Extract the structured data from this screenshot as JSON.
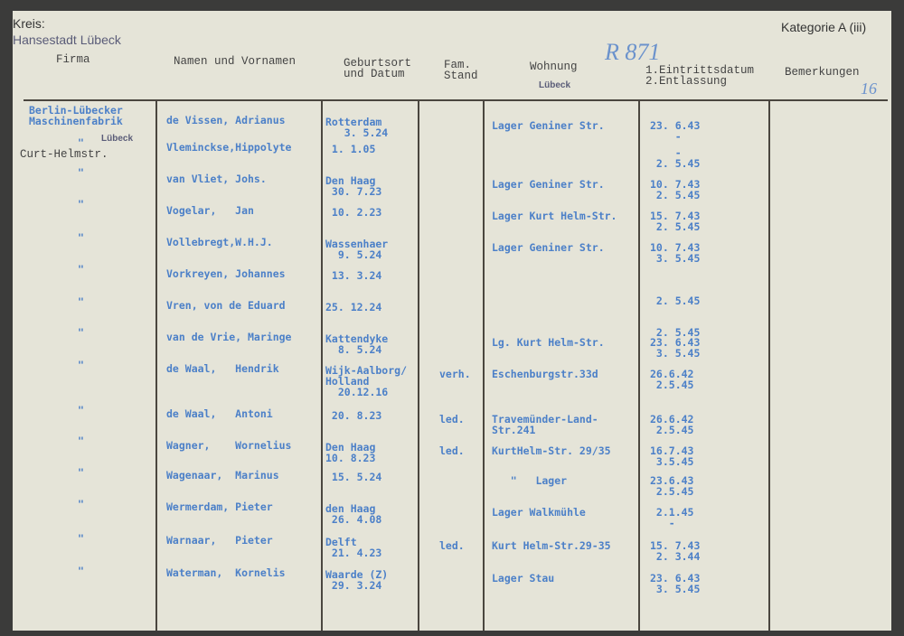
{
  "card": {
    "kreis_label": "Kreis:",
    "kreis_value": "Hansestadt Lübeck",
    "category": "Kategorie A (iii)",
    "archive_number": "R 871",
    "page_number": "16",
    "stamp_luebeck": "Lübeck",
    "curt_helmstr": "Curt-Helmstr."
  },
  "headers": {
    "firma": "Firma",
    "name": "Namen und Vornamen",
    "geburt": "Geburtsort\nund Datum",
    "fam": "Fam.\nStand",
    "wohnung": "Wohnung",
    "daten": "1.Eintrittsdatum\n2.Entlassung",
    "bemerkungen": "Bemerkungen"
  },
  "firma": "Berlin-Lübecker\nMaschinenfabrik",
  "ditto": "\"",
  "rows": [
    {
      "name": "de Vissen, Adrianus",
      "geburt": "Rotterdam\n   3. 5.24",
      "fam": "",
      "wohnung": "Lager Geniner Str.",
      "daten": "23. 6.43\n    -"
    },
    {
      "name": "Vleminckse,Hippolyte",
      "geburt": " 1. 1.05",
      "fam": "",
      "wohnung": "",
      "daten": "    -\n 2. 5.45"
    },
    {
      "name": "van Vliet, Johs.",
      "geburt": "Den Haag\n 30. 7.23",
      "fam": "",
      "wohnung": "Lager Geniner Str.",
      "daten": "10. 7.43\n 2. 5.45"
    },
    {
      "name": "Vogelar,   Jan",
      "geburt": " 10. 2.23",
      "fam": "",
      "wohnung": "Lager Kurt Helm-Str.",
      "daten": "15. 7.43\n 2. 5.45"
    },
    {
      "name": "Vollebregt,W.H.J.",
      "geburt": "Wassenhaer\n  9. 5.24",
      "fam": "",
      "wohnung": "Lager Geniner Str.",
      "daten": "10. 7.43\n 3. 5.45"
    },
    {
      "name": "Vorkreyen, Johannes",
      "geburt": " 13. 3.24",
      "fam": "",
      "wohnung": "",
      "daten": "\n\n 2. 5.45"
    },
    {
      "name": "Vren, von de Eduard",
      "geburt": "25. 12.24",
      "fam": "",
      "wohnung": "",
      "daten": "\n\n 2. 5.45"
    },
    {
      "name": "van de Vrie, Maringe",
      "geburt": "Kattendyke\n  8. 5.24",
      "fam": "",
      "wohnung": "Lg. Kurt Helm-Str.",
      "daten": "23. 6.43\n 3. 5.45"
    },
    {
      "name": "de Waal,   Hendrik",
      "geburt": "Wijk-Aalborg/\nHolland\n  20.12.16",
      "fam": "verh.",
      "wohnung": "Eschenburgstr.33d",
      "daten": "26.6.42\n 2.5.45"
    },
    {
      "name": "de Waal,   Antoni",
      "geburt": " 20. 8.23",
      "fam": "led.",
      "wohnung": "Travemünder-Land-\nStr.241",
      "daten": "26.6.42\n 2.5.45"
    },
    {
      "name": "Wagner,    Wornelius",
      "geburt": "Den Haag\n10. 8.23",
      "fam": "led.",
      "wohnung": "KurtHelm-Str. 29/35",
      "daten": "16.7.43\n 3.5.45"
    },
    {
      "name": "Wagenaar,  Marinus",
      "geburt": " 15. 5.24",
      "fam": "",
      "wohnung": "   \"   Lager",
      "daten": "23.6.43\n 2.5.45"
    },
    {
      "name": "Wermerdam, Pieter",
      "geburt": "den Haag\n 26. 4.08",
      "fam": "",
      "wohnung": "Lager Walkmühle",
      "daten": " 2.1.45\n   -"
    },
    {
      "name": "Warnaar,   Pieter",
      "geburt": "Delft\n 21. 4.23",
      "fam": "led.",
      "wohnung": "Kurt Helm-Str.29-35",
      "daten": "15. 7.43\n 2. 3.44"
    },
    {
      "name": "Waterman,  Kornelis",
      "geburt": "Waarde (Z)\n 29. 3.24",
      "fam": "",
      "wohnung": "Lager Stau",
      "daten": "23. 6.43\n 3. 5.45"
    }
  ]
}
